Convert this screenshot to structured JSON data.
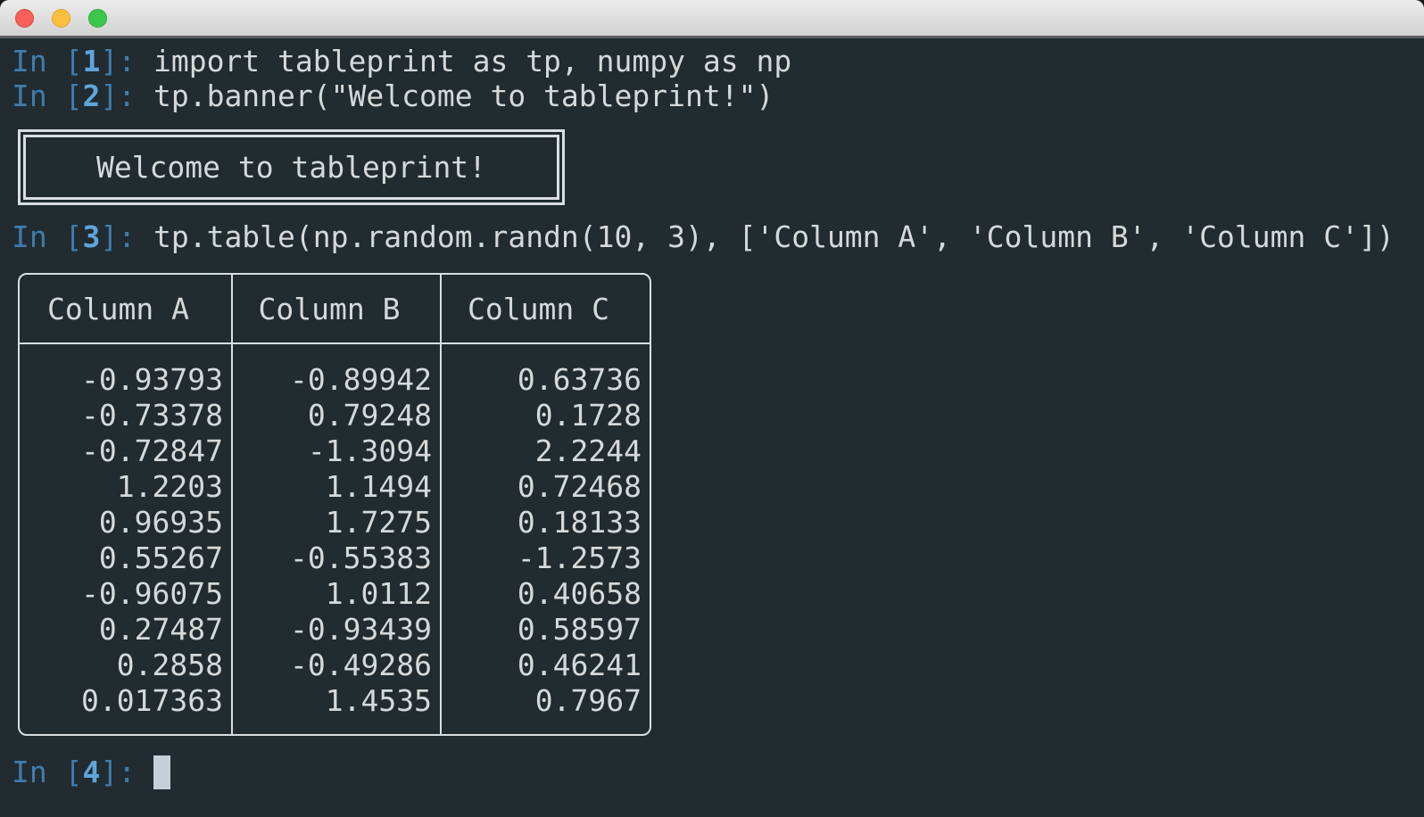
{
  "window": {
    "controls": {
      "close_label": "close",
      "minimize_label": "minimize",
      "zoom_label": "zoom"
    }
  },
  "terminal": {
    "lines": [
      {
        "prefix": "In [",
        "number": "1",
        "suffix": "]: ",
        "command": "import tableprint as tp, numpy as np"
      },
      {
        "prefix": "In [",
        "number": "2",
        "suffix": "]: ",
        "command": "tp.banner(\"Welcome to tableprint!\")"
      },
      {
        "prefix": "In [",
        "number": "3",
        "suffix": "]: ",
        "command": "tp.table(np.random.randn(10, 3), ['Column A', 'Column B', 'Column C'])"
      },
      {
        "prefix": "In [",
        "number": "4",
        "suffix": "]: ",
        "command": ""
      }
    ],
    "banner_text": "Welcome to tableprint!",
    "table": {
      "headers": [
        "Column A",
        "Column B",
        "Column C"
      ],
      "rows": [
        [
          "-0.93793",
          "-0.89942",
          "0.63736"
        ],
        [
          "-0.73378",
          "0.79248",
          "0.1728"
        ],
        [
          "-0.72847",
          "-1.3094",
          "2.2244"
        ],
        [
          "1.2203",
          "1.1494",
          "0.72468"
        ],
        [
          "0.96935",
          "1.7275",
          "0.18133"
        ],
        [
          "0.55267",
          "-0.55383",
          "-1.2573"
        ],
        [
          "-0.96075",
          "1.0112",
          "0.40658"
        ],
        [
          "0.27487",
          "-0.93439",
          "0.58597"
        ],
        [
          "0.2858",
          "-0.49286",
          "0.46241"
        ],
        [
          "0.017363",
          "1.4535",
          "0.7967"
        ]
      ]
    },
    "colors": {
      "background": "#212b30",
      "foreground": "#d6d9d9",
      "prompt_blue": "#3f7cab",
      "prompt_number_blue": "#5ea5dc",
      "border_white": "#d9dee1",
      "cursor": "#c8ced7",
      "titlebar_top": "#ececec",
      "titlebar_bottom": "#d2d2d2",
      "traffic_red": "#f9605a",
      "traffic_yellow": "#fbbf40",
      "traffic_green": "#3cc74b"
    }
  }
}
